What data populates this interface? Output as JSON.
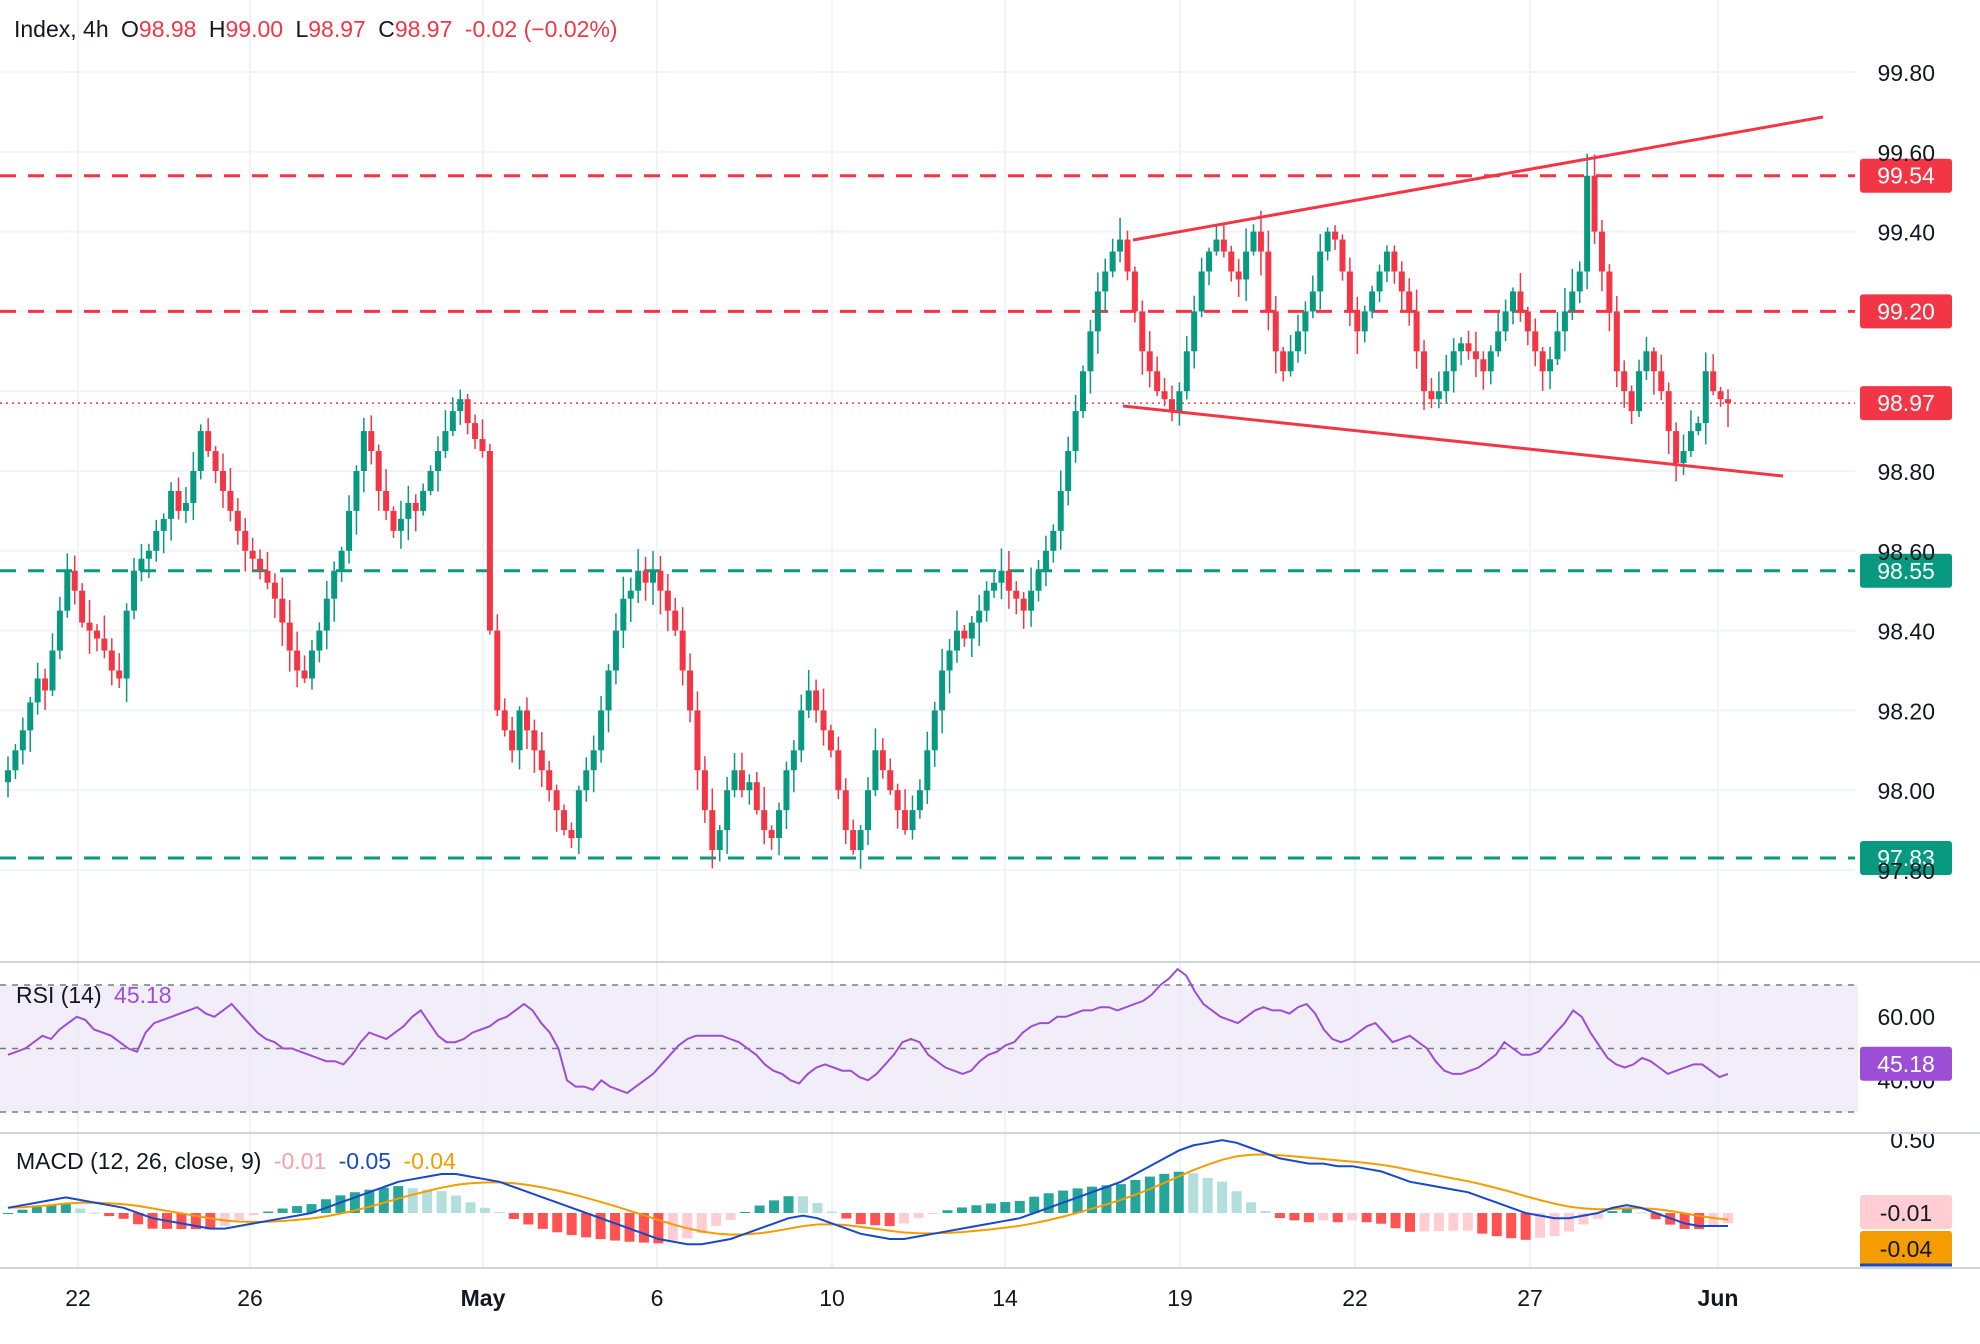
{
  "header": {
    "symbol": "Index, 4h",
    "o_label": "O",
    "o_value": "98.98",
    "h_label": "H",
    "h_value": "99.00",
    "l_label": "L",
    "l_value": "98.97",
    "c_label": "C",
    "c_value": "98.97",
    "change": "-0.02 (−0.02%)"
  },
  "rsi": {
    "label": "RSI (14)",
    "value": "45.18"
  },
  "macd": {
    "label": "MACD (12, 26, close, 9)",
    "hist": "-0.01",
    "macd": "-0.05",
    "signal": "-0.04"
  },
  "colors": {
    "up": "#089981",
    "down": "#f23645",
    "rsi": "#9c4fd6",
    "macd": "#1848cc",
    "signal": "#f59d00",
    "panel_bg": "#ede7f6"
  },
  "chart_data": {
    "type": "candlestick",
    "x_ticks": [
      "22",
      "26",
      "May",
      "6",
      "10",
      "14",
      "19",
      "22",
      "27",
      "Jun"
    ],
    "y_ticks": [
      "99.80",
      "99.60",
      "99.40",
      "98.80",
      "98.60",
      "98.40",
      "98.20",
      "98.00",
      "97.80"
    ],
    "ylim": [
      97.6,
      99.9
    ],
    "horizontal_levels": [
      {
        "value": 99.54,
        "label": "99.54",
        "color": "#f23645",
        "style": "dashed"
      },
      {
        "value": 99.2,
        "label": "99.20",
        "color": "#f23645",
        "style": "dashed"
      },
      {
        "value": 98.55,
        "label": "98.55",
        "color": "#089981",
        "style": "dashed"
      },
      {
        "value": 97.83,
        "label": "97.83",
        "color": "#089981",
        "style": "dashed"
      }
    ],
    "last_price": {
      "value": 98.97,
      "label": "98.97"
    },
    "trendlines": [
      {
        "from": [
          17.3,
          99.39
        ],
        "to": [
          33.3,
          99.69
        ]
      },
      {
        "from": [
          17.1,
          99.03
        ],
        "to": [
          33.0,
          98.81
        ]
      }
    ],
    "closes": [
      98.05,
      98.1,
      98.15,
      98.22,
      98.28,
      98.25,
      98.35,
      98.45,
      98.55,
      98.5,
      98.42,
      98.4,
      98.38,
      98.35,
      98.3,
      98.28,
      98.45,
      98.55,
      98.58,
      98.6,
      98.65,
      98.68,
      98.75,
      98.7,
      98.72,
      98.8,
      98.9,
      98.85,
      98.8,
      98.75,
      98.7,
      98.65,
      98.6,
      98.58,
      98.55,
      98.52,
      98.48,
      98.42,
      98.35,
      98.3,
      98.28,
      98.35,
      98.4,
      98.48,
      98.55,
      98.6,
      98.7,
      98.8,
      98.9,
      98.85,
      98.75,
      98.7,
      98.65,
      98.68,
      98.72,
      98.7,
      98.75,
      98.8,
      98.85,
      98.9,
      98.95,
      98.98,
      98.92,
      98.88,
      98.85,
      98.4,
      98.2,
      98.15,
      98.1,
      98.2,
      98.15,
      98.1,
      98.05,
      98.0,
      97.95,
      97.9,
      97.88,
      98.0,
      98.05,
      98.1,
      98.2,
      98.3,
      98.4,
      98.48,
      98.5,
      98.55,
      98.52,
      98.55,
      98.5,
      98.45,
      98.4,
      98.3,
      98.2,
      98.05,
      97.95,
      97.85,
      97.9,
      98.0,
      98.05,
      98.0,
      98.02,
      97.95,
      97.9,
      97.88,
      97.95,
      98.05,
      98.1,
      98.2,
      98.25,
      98.2,
      98.15,
      98.1,
      98.0,
      97.9,
      97.85,
      97.9,
      98.0,
      98.1,
      98.05,
      98.0,
      97.95,
      97.9,
      97.95,
      98.0,
      98.1,
      98.2,
      98.3,
      98.35,
      98.4,
      98.38,
      98.42,
      98.45,
      98.5,
      98.52,
      98.55,
      98.5,
      98.48,
      98.45,
      98.5,
      98.55,
      98.6,
      98.65,
      98.75,
      98.85,
      98.95,
      99.05,
      99.15,
      99.25,
      99.3,
      99.35,
      99.38,
      99.3,
      99.2,
      99.1,
      99.05,
      99.0,
      98.98,
      98.95,
      99.0,
      99.1,
      99.2,
      99.3,
      99.35,
      99.38,
      99.35,
      99.3,
      99.28,
      99.35,
      99.4,
      99.35,
      99.2,
      99.1,
      99.05,
      99.1,
      99.15,
      99.2,
      99.25,
      99.35,
      99.4,
      99.38,
      99.3,
      99.2,
      99.15,
      99.2,
      99.25,
      99.3,
      99.35,
      99.3,
      99.25,
      99.2,
      99.1,
      99.0,
      98.98,
      99.0,
      99.05,
      99.1,
      99.12,
      99.1,
      99.08,
      99.05,
      99.1,
      99.15,
      99.2,
      99.25,
      99.2,
      99.15,
      99.1,
      99.05,
      99.08,
      99.15,
      99.2,
      99.25,
      99.3,
      99.54,
      99.4,
      99.3,
      99.2,
      99.05,
      99.0,
      98.95,
      99.05,
      99.1,
      99.05,
      99.0,
      98.9,
      98.82,
      98.85,
      98.9,
      98.92,
      99.05,
      99.0,
      98.98,
      98.97
    ],
    "rsi_series": [
      48,
      49,
      50,
      52,
      54,
      53,
      56,
      58,
      60,
      59,
      56,
      55,
      54,
      52,
      50,
      49,
      55,
      58,
      59,
      60,
      61,
      62,
      63,
      61,
      60,
      62,
      64,
      61,
      58,
      55,
      53,
      52,
      50,
      50,
      49,
      48,
      47,
      46,
      46,
      45,
      48,
      52,
      55,
      54,
      53,
      55,
      57,
      60,
      62,
      58,
      54,
      52,
      52,
      53,
      55,
      56,
      57,
      59,
      60,
      62,
      64,
      62,
      58,
      55,
      50,
      40,
      38,
      38,
      37,
      40,
      38,
      37,
      36,
      38,
      40,
      42,
      45,
      48,
      51,
      53,
      54,
      54,
      54,
      54,
      53,
      52,
      50,
      48,
      45,
      43,
      42,
      40,
      39,
      42,
      44,
      45,
      44,
      43,
      43,
      41,
      40,
      42,
      45,
      48,
      52,
      53,
      52,
      48,
      46,
      44,
      43,
      42,
      43,
      46,
      48,
      49,
      51,
      52,
      55,
      57,
      58,
      58,
      60,
      60,
      61,
      62,
      62,
      63,
      63,
      62,
      63,
      64,
      65,
      67,
      70,
      72,
      75,
      73,
      68,
      64,
      62,
      60,
      59,
      58,
      60,
      62,
      63,
      62,
      62,
      61,
      63,
      64,
      61,
      56,
      53,
      52,
      53,
      55,
      57,
      58,
      55,
      52,
      53,
      54,
      52,
      50,
      46,
      43,
      42,
      42,
      43,
      44,
      46,
      48,
      52,
      50,
      48,
      48,
      49,
      52,
      55,
      58,
      62,
      60,
      55,
      51,
      47,
      45,
      44,
      45,
      47,
      46,
      44,
      42,
      43,
      44,
      45,
      45,
      43,
      41,
      42
    ],
    "macd_series": [
      0.02,
      0.03,
      0.04,
      0.05,
      0.06,
      0.05,
      0.04,
      0.03,
      0.02,
      0.0,
      -0.02,
      -0.03,
      -0.04,
      -0.05,
      -0.06,
      -0.06,
      -0.05,
      -0.04,
      -0.03,
      -0.02,
      -0.01,
      0.0,
      0.02,
      0.04,
      0.06,
      0.08,
      0.1,
      0.12,
      0.13,
      0.14,
      0.15,
      0.15,
      0.14,
      0.13,
      0.12,
      0.1,
      0.08,
      0.06,
      0.04,
      0.02,
      0.0,
      -0.02,
      -0.04,
      -0.06,
      -0.08,
      -0.1,
      -0.11,
      -0.12,
      -0.12,
      -0.11,
      -0.1,
      -0.08,
      -0.06,
      -0.04,
      -0.02,
      -0.01,
      -0.02,
      -0.04,
      -0.06,
      -0.08,
      -0.09,
      -0.1,
      -0.1,
      -0.09,
      -0.08,
      -0.07,
      -0.06,
      -0.05,
      -0.04,
      -0.03,
      -0.02,
      0.0,
      0.02,
      0.04,
      0.06,
      0.08,
      0.1,
      0.12,
      0.15,
      0.18,
      0.21,
      0.24,
      0.26,
      0.27,
      0.28,
      0.27,
      0.25,
      0.23,
      0.21,
      0.2,
      0.19,
      0.19,
      0.18,
      0.18,
      0.17,
      0.16,
      0.14,
      0.12,
      0.11,
      0.1,
      0.09,
      0.08,
      0.06,
      0.04,
      0.02,
      0.0,
      -0.01,
      -0.02,
      -0.02,
      -0.01,
      0.0,
      0.02,
      0.03,
      0.02,
      0.0,
      -0.02,
      -0.04,
      -0.05,
      -0.05,
      -0.05
    ]
  }
}
